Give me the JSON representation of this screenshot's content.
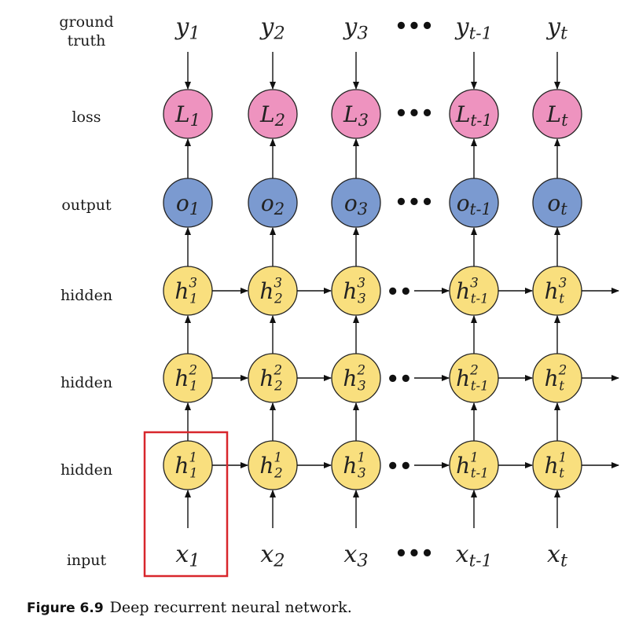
{
  "rows": {
    "ground_truth": [
      "ground",
      "truth"
    ],
    "loss": "loss",
    "output": "output",
    "hidden3": "hidden",
    "hidden2": "hidden",
    "hidden1": "hidden",
    "input": "input"
  },
  "columns": [
    {
      "y": "y",
      "sub": "1",
      "L": "L",
      "o": "o",
      "h": "h",
      "x": "x"
    },
    {
      "y": "y",
      "sub": "2",
      "L": "L",
      "o": "o",
      "h": "h",
      "x": "x"
    },
    {
      "y": "y",
      "sub": "3",
      "L": "L",
      "o": "o",
      "h": "h",
      "x": "x"
    },
    {
      "y": "y",
      "sub": "t-1",
      "L": "L",
      "o": "o",
      "h": "h",
      "x": "x"
    },
    {
      "y": "y",
      "sub": "t",
      "L": "L",
      "o": "o",
      "h": "h",
      "x": "x"
    }
  ],
  "layers": [
    "3",
    "2",
    "1"
  ],
  "ellipsis": "•••",
  "hidden_ellipsis": "••",
  "colors": {
    "loss": "#ee93bf",
    "output": "#7b9ad0",
    "hidden": "#f9df7e",
    "highlight": "#d8262c"
  },
  "caption": {
    "figure": "Figure 6.9",
    "text": "Deep recurrent neural network."
  }
}
